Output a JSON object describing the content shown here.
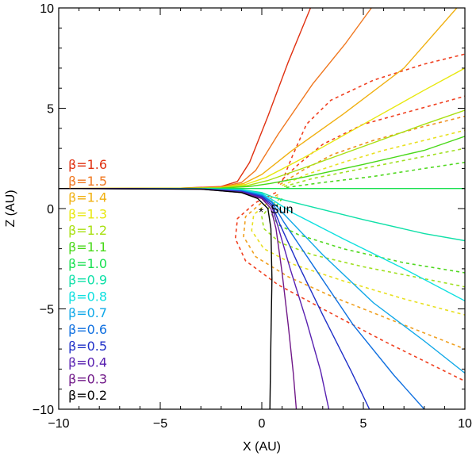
{
  "chart_data": {
    "type": "line",
    "xlabel": "X (AU)",
    "ylabel": "Z (AU)",
    "xlim": [
      -10,
      10
    ],
    "ylim": [
      -10,
      10
    ],
    "xticks": [
      -10,
      -5,
      0,
      5,
      10
    ],
    "yticks": [
      -10,
      -5,
      0,
      5,
      10
    ],
    "xtick_labels": [
      "−10",
      "−5",
      "0",
      "5",
      "10"
    ],
    "ytick_labels": [
      "−10",
      "−5",
      "0",
      "5",
      "10"
    ],
    "grid": false,
    "legend_position": "left",
    "sun": {
      "x": 0,
      "y": 0,
      "marker": "*",
      "label": "Sun"
    },
    "series": [
      {
        "name": "β=1.6",
        "color": "#e03010",
        "style": "solid",
        "points": [
          [
            -10,
            1.0
          ],
          [
            -4,
            1.02
          ],
          [
            -2,
            1.1
          ],
          [
            -1.2,
            1.35
          ],
          [
            -0.6,
            2.3
          ],
          [
            0.3,
            4.6
          ],
          [
            1.3,
            7.3
          ],
          [
            2.4,
            10
          ]
        ]
      },
      {
        "name": "β=1.5",
        "color": "#f07820",
        "style": "solid",
        "points": [
          [
            -10,
            1.0
          ],
          [
            -4,
            1.02
          ],
          [
            -2,
            1.08
          ],
          [
            -1.0,
            1.3
          ],
          [
            -0.3,
            1.9
          ],
          [
            0.8,
            3.7
          ],
          [
            2.5,
            6.2
          ],
          [
            4.1,
            8.2
          ],
          [
            5.4,
            10
          ]
        ]
      },
      {
        "name": "β=1.4",
        "color": "#f0b010",
        "style": "solid",
        "points": [
          [
            -10,
            1.0
          ],
          [
            -4,
            1.01
          ],
          [
            -2,
            1.06
          ],
          [
            -0.9,
            1.25
          ],
          [
            0,
            1.7
          ],
          [
            1.5,
            2.9
          ],
          [
            4,
            4.7
          ],
          [
            7,
            7.0
          ],
          [
            9.6,
            10
          ]
        ]
      },
      {
        "name": "β=1.3",
        "color": "#e8e810",
        "style": "solid",
        "points": [
          [
            -10,
            1.0
          ],
          [
            -4,
            1.01
          ],
          [
            -2,
            1.04
          ],
          [
            -0.8,
            1.2
          ],
          [
            0.2,
            1.55
          ],
          [
            2,
            2.5
          ],
          [
            5,
            4.2
          ],
          [
            8,
            5.9
          ],
          [
            10,
            7.0
          ]
        ]
      },
      {
        "name": "β=1.2",
        "color": "#a8e010",
        "style": "solid",
        "points": [
          [
            -10,
            1.0
          ],
          [
            -4,
            1.01
          ],
          [
            -2,
            1.03
          ],
          [
            -0.7,
            1.15
          ],
          [
            0.3,
            1.4
          ],
          [
            2,
            2.0
          ],
          [
            5,
            3.1
          ],
          [
            8,
            4.2
          ],
          [
            10,
            4.9
          ]
        ]
      },
      {
        "name": "β=1.1",
        "color": "#48d818",
        "style": "solid",
        "points": [
          [
            -10,
            1.0
          ],
          [
            -4,
            1.0
          ],
          [
            -2,
            1.02
          ],
          [
            -0.6,
            1.1
          ],
          [
            0.4,
            1.25
          ],
          [
            2,
            1.55
          ],
          [
            5,
            2.2
          ],
          [
            8,
            2.9
          ],
          [
            10,
            3.6
          ]
        ]
      },
      {
        "name": "β=1.0",
        "color": "#18e050",
        "style": "solid",
        "points": [
          [
            -10,
            1.0
          ],
          [
            10,
            1.0
          ]
        ]
      },
      {
        "name": "β=0.9",
        "color": "#10e0a8",
        "style": "solid",
        "points": [
          [
            -10,
            1.0
          ],
          [
            -3,
            0.99
          ],
          [
            -1,
            0.95
          ],
          [
            0,
            0.8
          ],
          [
            0.6,
            0.55
          ],
          [
            2,
            0.2
          ],
          [
            5,
            -0.55
          ],
          [
            8,
            -1.25
          ],
          [
            10,
            -1.6
          ]
        ]
      },
      {
        "name": "β=0.8",
        "color": "#10e0e0",
        "style": "solid",
        "points": [
          [
            -10,
            1.0
          ],
          [
            -3,
            0.99
          ],
          [
            -1,
            0.93
          ],
          [
            0,
            0.75
          ],
          [
            0.5,
            0.45
          ],
          [
            1.5,
            -0.2
          ],
          [
            4,
            -1.5
          ],
          [
            7,
            -3.0
          ],
          [
            10,
            -4.6
          ]
        ]
      },
      {
        "name": "β=0.7",
        "color": "#10a8e8",
        "style": "solid",
        "points": [
          [
            -10,
            1.0
          ],
          [
            -3,
            0.98
          ],
          [
            -1,
            0.9
          ],
          [
            0,
            0.7
          ],
          [
            0.5,
            0.35
          ],
          [
            1.3,
            -0.5
          ],
          [
            3,
            -2.3
          ],
          [
            5.5,
            -4.7
          ],
          [
            8,
            -6.6
          ],
          [
            10,
            -8.2
          ]
        ]
      },
      {
        "name": "β=0.6",
        "color": "#1070e0",
        "style": "solid",
        "points": [
          [
            -10,
            1.0
          ],
          [
            -3,
            0.98
          ],
          [
            -1,
            0.88
          ],
          [
            0,
            0.65
          ],
          [
            0.5,
            0.3
          ],
          [
            1.1,
            -0.7
          ],
          [
            2.5,
            -2.8
          ],
          [
            4.5,
            -5.8
          ],
          [
            6.5,
            -8.3
          ],
          [
            8,
            -10
          ]
        ]
      },
      {
        "name": "β=0.5",
        "color": "#2030c8",
        "style": "solid",
        "points": [
          [
            -10,
            1.0
          ],
          [
            -3,
            0.98
          ],
          [
            -1,
            0.85
          ],
          [
            0,
            0.6
          ],
          [
            0.5,
            0.2
          ],
          [
            0.9,
            -0.8
          ],
          [
            1.8,
            -2.8
          ],
          [
            3,
            -5.3
          ],
          [
            4.4,
            -8.1
          ],
          [
            5.3,
            -10
          ]
        ]
      },
      {
        "name": "β=0.4",
        "color": "#5820b0",
        "style": "solid",
        "points": [
          [
            -10,
            1.0
          ],
          [
            -3,
            0.98
          ],
          [
            -1,
            0.83
          ],
          [
            0,
            0.55
          ],
          [
            0.5,
            0.1
          ],
          [
            0.8,
            -0.9
          ],
          [
            1.4,
            -3.0
          ],
          [
            2.2,
            -5.6
          ],
          [
            2.9,
            -8.1
          ],
          [
            3.3,
            -10
          ]
        ]
      },
      {
        "name": "β=0.3",
        "color": "#701888",
        "style": "solid",
        "points": [
          [
            -10,
            1.0
          ],
          [
            -3,
            0.97
          ],
          [
            -1,
            0.8
          ],
          [
            0,
            0.5
          ],
          [
            0.45,
            0.0
          ],
          [
            0.7,
            -1.0
          ],
          [
            1.0,
            -3.2
          ],
          [
            1.3,
            -5.8
          ],
          [
            1.55,
            -8.2
          ],
          [
            1.7,
            -10
          ]
        ]
      },
      {
        "name": "β=0.2",
        "color": "#000000",
        "style": "solid",
        "points": [
          [
            -10,
            1.0
          ],
          [
            -3,
            0.97
          ],
          [
            -1,
            0.8
          ],
          [
            -0.2,
            0.5
          ],
          [
            0.3,
            0.0
          ],
          [
            0.45,
            -1.0
          ],
          [
            0.5,
            -3.5
          ],
          [
            0.45,
            -6.5
          ],
          [
            0.4,
            -10
          ]
        ]
      }
    ],
    "dashed_series": [
      {
        "color": "#f04020",
        "points": [
          [
            0.7,
            0.8
          ],
          [
            -0.3,
            0.3
          ],
          [
            -1.2,
            -0.5
          ],
          [
            -1.3,
            -1.5
          ],
          [
            -0.8,
            -2.6
          ],
          [
            0.8,
            -3.8
          ],
          [
            3,
            -5.0
          ],
          [
            6,
            -6.6
          ],
          [
            10,
            -8.6
          ]
        ]
      },
      {
        "color": "#f0a020",
        "points": [
          [
            0.8,
            0.7
          ],
          [
            0,
            0.3
          ],
          [
            -0.8,
            -0.4
          ],
          [
            -0.9,
            -1.4
          ],
          [
            -0.3,
            -2.4
          ],
          [
            1.3,
            -3.4
          ],
          [
            3.5,
            -4.4
          ],
          [
            6.5,
            -5.6
          ],
          [
            10,
            -7.0
          ]
        ]
      },
      {
        "color": "#e8e020",
        "points": [
          [
            0.8,
            0.6
          ],
          [
            0.2,
            0.2
          ],
          [
            -0.4,
            -0.3
          ],
          [
            -0.5,
            -1.1
          ],
          [
            0.1,
            -2.0
          ],
          [
            1.6,
            -2.8
          ],
          [
            4,
            -3.6
          ],
          [
            7,
            -4.5
          ],
          [
            10,
            -5.3
          ]
        ]
      },
      {
        "color": "#a0e020",
        "points": [
          [
            0.9,
            0.5
          ],
          [
            0.4,
            0.1
          ],
          [
            0,
            -0.4
          ],
          [
            0.1,
            -1.0
          ],
          [
            0.9,
            -1.7
          ],
          [
            2.5,
            -2.3
          ],
          [
            5,
            -2.9
          ],
          [
            8,
            -3.5
          ],
          [
            10,
            -3.9
          ]
        ]
      },
      {
        "color": "#50d820",
        "points": [
          [
            1.0,
            0.5
          ],
          [
            0.7,
            0.1
          ],
          [
            0.5,
            -0.3
          ],
          [
            0.8,
            -0.8
          ],
          [
            1.8,
            -1.3
          ],
          [
            4,
            -2.0
          ],
          [
            7,
            -2.7
          ],
          [
            10,
            -3.2
          ]
        ]
      },
      {
        "color": "#f04020",
        "points": [
          [
            0.8,
            1.25
          ],
          [
            1.8,
            2.2
          ],
          [
            3,
            3.2
          ],
          [
            5,
            4.2
          ],
          [
            7.5,
            4.9
          ],
          [
            10,
            5.6
          ]
        ]
      },
      {
        "color": "#f09020",
        "points": [
          [
            0.9,
            1.2
          ],
          [
            2,
            1.9
          ],
          [
            3.5,
            2.7
          ],
          [
            5.5,
            3.4
          ],
          [
            8,
            4.1
          ],
          [
            10,
            4.6
          ]
        ]
      },
      {
        "color": "#e8e020",
        "points": [
          [
            1.0,
            1.15
          ],
          [
            2.2,
            1.7
          ],
          [
            4,
            2.3
          ],
          [
            6,
            2.9
          ],
          [
            8,
            3.4
          ],
          [
            10,
            3.9
          ]
        ]
      },
      {
        "color": "#a0e020",
        "points": [
          [
            1.1,
            1.1
          ],
          [
            2.5,
            1.5
          ],
          [
            4.5,
            1.9
          ],
          [
            7,
            2.4
          ],
          [
            10,
            3.0
          ]
        ]
      },
      {
        "color": "#50d820",
        "points": [
          [
            1.2,
            1.05
          ],
          [
            3,
            1.3
          ],
          [
            5.5,
            1.6
          ],
          [
            8,
            2.0
          ],
          [
            10,
            2.3
          ]
        ]
      },
      {
        "color": "#f04020",
        "points": [
          [
            1.0,
            1.35
          ],
          [
            1.5,
            2.6
          ],
          [
            2.2,
            4.2
          ],
          [
            3.4,
            5.4
          ],
          [
            5.5,
            6.4
          ],
          [
            8,
            7.2
          ],
          [
            10,
            7.7
          ]
        ]
      }
    ]
  }
}
